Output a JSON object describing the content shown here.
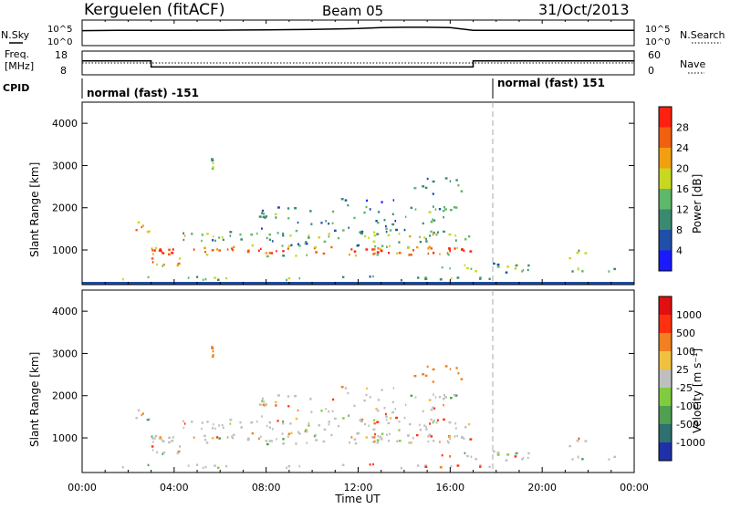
{
  "header": {
    "station": "Kerguelen (fitACF)",
    "beam": "Beam 05",
    "date": "31/Oct/2013"
  },
  "strips": {
    "nsky_label": "N.Sky",
    "nsky_ticks": [
      "10^5",
      "10^0"
    ],
    "nsky_right_ticks": [
      "10^5",
      "10^0"
    ],
    "nsearch_label": "N.Search",
    "freq_label_1": "Freq.",
    "freq_label_2": "[MHz]",
    "freq_ticks": [
      "18",
      "8"
    ],
    "nave_ticks": [
      "60",
      "0"
    ],
    "nave_label": "Nave",
    "cpid_label": "CPID",
    "cpid_segments": [
      "normal (fast) -151",
      "normal (fast) 151"
    ]
  },
  "power_panel": {
    "ylabel": "Slant Range [km]",
    "yticks": [
      "4000",
      "3000",
      "2000",
      "1000"
    ],
    "colorbar_label": "Power [dB]",
    "colorbar_ticks": [
      "28",
      "24",
      "20",
      "16",
      "12",
      "8",
      "4"
    ],
    "colors": [
      "#1a1aff",
      "#1f4fa8",
      "#3a8a70",
      "#5fb86a",
      "#c8d820",
      "#f0a010",
      "#f06010",
      "#ff2010"
    ]
  },
  "velocity_panel": {
    "ylabel": "Slant Range [km]",
    "yticks": [
      "4000",
      "3000",
      "2000",
      "1000"
    ],
    "colorbar_label": "Velocity [m s⁻¹]",
    "colorbar_ticks": [
      "1000",
      "500",
      "100",
      "25",
      "-25",
      "-100",
      "-500",
      "-1000"
    ],
    "colors": [
      "#2030a8",
      "#2f7070",
      "#4fa050",
      "#80cc40",
      "#bfbfbf",
      "#f0c040",
      "#f08020",
      "#ff3010",
      "#e01010"
    ]
  },
  "x_axis": {
    "label": "Time UT",
    "ticks": [
      "00:00",
      "04:00",
      "08:00",
      "12:00",
      "16:00",
      "20:00",
      "00:00"
    ]
  },
  "chart_data": [
    {
      "type": "line",
      "title": "N.Sky",
      "x_range_hours": [
        0,
        24
      ],
      "note_scale": "log",
      "ylim": [
        "10^0",
        "10^5"
      ],
      "series": [
        {
          "name": "N.Sky",
          "x": [
            0,
            2,
            4,
            6,
            8,
            10,
            12,
            13,
            14,
            15,
            16,
            17,
            18,
            20,
            22,
            24
          ],
          "y": [
            1000,
            1200,
            1200,
            1300,
            1500,
            2000,
            3000,
            5000,
            6000,
            6000,
            5000,
            1200,
            1200,
            1200,
            1200,
            1200
          ]
        }
      ]
    },
    {
      "type": "line",
      "title": "Freq. [MHz]",
      "ylim": [
        8,
        18
      ],
      "series": [
        {
          "name": "Freq.",
          "x": [
            0,
            3,
            3,
            17,
            17,
            24
          ],
          "y": [
            14,
            14,
            11,
            11,
            14,
            14
          ]
        }
      ]
    },
    {
      "type": "heatmap",
      "title": "Power [dB]",
      "xlabel": "Time UT",
      "ylabel": "Slant Range [km]",
      "x_range_hours": [
        0,
        24
      ],
      "ylim": [
        180,
        4500
      ],
      "color_range": [
        0,
        30
      ]
    },
    {
      "type": "heatmap",
      "title": "Velocity [m s⁻¹]",
      "xlabel": "Time UT",
      "ylabel": "Slant Range [km]",
      "x_range_hours": [
        0,
        24
      ],
      "ylim": [
        180,
        4500
      ],
      "color_range": [
        -1000,
        1000
      ]
    }
  ]
}
